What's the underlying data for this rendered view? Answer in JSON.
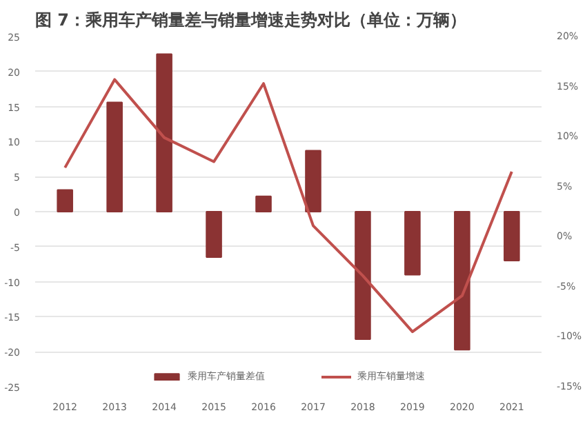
{
  "chart_data": {
    "type": "bar",
    "title": "图 7：乘用车产销量差与销量增速走势对比（单位：万辆）",
    "categories": [
      "2012",
      "2013",
      "2014",
      "2015",
      "2016",
      "2017",
      "2018",
      "2019",
      "2020",
      "2021"
    ],
    "series": [
      {
        "name": "乘用车产销量差值",
        "color": "#8b3333",
        "values": [
          3.1,
          15.6,
          22.5,
          -6.5,
          2.2,
          8.7,
          -18.2,
          -9.0,
          -19.7,
          -7.0
        ]
      },
      {
        "name": "乘用车销量增速",
        "type": "line",
        "axis": "y2",
        "color": "#c0504d",
        "values": [
          6.9,
          15.7,
          9.9,
          7.5,
          15.3,
          1.1,
          -3.9,
          -9.5,
          -5.9,
          6.5
        ]
      }
    ],
    "ylim": [
      -25,
      25
    ],
    "yticks": [
      -25,
      -20,
      -15,
      -10,
      -5,
      0,
      5,
      10,
      15,
      20,
      25
    ],
    "y2lim": [
      -15,
      20
    ],
    "y2ticks": [
      {
        "value": -15,
        "label": "-15%"
      },
      {
        "value": -10,
        "label": "-10%"
      },
      {
        "value": -5,
        "label": "-5%"
      },
      {
        "value": 0,
        "label": "0%"
      },
      {
        "value": 5,
        "label": "5%"
      },
      {
        "value": 10,
        "label": "10%"
      },
      {
        "value": 15,
        "label": "15%"
      },
      {
        "value": 20,
        "label": "20%"
      }
    ],
    "grid": "y",
    "legend": "bottom",
    "marker": "none",
    "line_style": "solid"
  }
}
